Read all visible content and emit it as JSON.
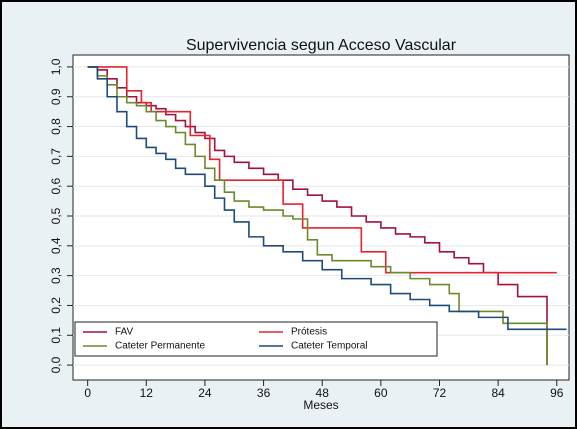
{
  "chart_data": {
    "type": "line",
    "step": "post",
    "title": "Supervivencia segun Acceso Vascular",
    "x_label": "Meses",
    "xlim": [
      -3,
      98.5
    ],
    "ylim": [
      -0.05,
      1.04
    ],
    "xticks": [
      0,
      12,
      24,
      36,
      48,
      60,
      72,
      84,
      96
    ],
    "yticks": [
      {
        "value": 0,
        "label": "0,0"
      },
      {
        "value": 0.1,
        "label": "0,1"
      },
      {
        "value": 0.2,
        "label": "0,2"
      },
      {
        "value": 0.3,
        "label": "0,3"
      },
      {
        "value": 0.4,
        "label": "0,4"
      },
      {
        "value": 0.5,
        "label": "0,5"
      },
      {
        "value": 0.6,
        "label": "0,6"
      },
      {
        "value": 0.7,
        "label": "0,7"
      },
      {
        "value": 0.8,
        "label": "0,8"
      },
      {
        "value": 0.9,
        "label": "0,9"
      },
      {
        "value": 1.0,
        "label": "1,0"
      }
    ],
    "grid": true,
    "legend": "lower left",
    "series": [
      {
        "name": "FAV",
        "color": "#a3123f",
        "x": [
          0,
          2,
          4,
          6,
          8,
          10,
          12,
          14,
          16,
          18,
          20,
          22,
          24,
          26,
          28,
          30,
          33,
          36,
          39,
          42,
          45,
          48,
          51,
          54,
          57,
          60,
          63,
          66,
          69,
          72,
          75,
          78,
          81,
          84,
          88,
          94
        ],
        "values": [
          1.0,
          0.99,
          0.96,
          0.93,
          0.9,
          0.88,
          0.87,
          0.86,
          0.84,
          0.82,
          0.8,
          0.78,
          0.76,
          0.72,
          0.7,
          0.68,
          0.66,
          0.64,
          0.62,
          0.59,
          0.57,
          0.55,
          0.53,
          0.5,
          0.48,
          0.46,
          0.44,
          0.43,
          0.41,
          0.38,
          0.36,
          0.34,
          0.31,
          0.27,
          0.23,
          0.0
        ]
      },
      {
        "name": "Prótesis",
        "color": "#e8222e",
        "x": [
          0,
          8,
          11,
          13,
          21,
          25,
          27,
          40,
          44,
          56,
          61,
          96
        ],
        "values": [
          1.0,
          0.92,
          0.88,
          0.85,
          0.77,
          0.69,
          0.62,
          0.54,
          0.46,
          0.38,
          0.31,
          0.31
        ]
      },
      {
        "name": "Cateter Permanente",
        "color": "#6b8a2a",
        "x": [
          0,
          2,
          4,
          6,
          8,
          10,
          12,
          14,
          16,
          18,
          20,
          22,
          24,
          26,
          28,
          30,
          33,
          36,
          40,
          42,
          45,
          47,
          50,
          58,
          62,
          66,
          70,
          74,
          76,
          85,
          94
        ],
        "values": [
          1.0,
          0.97,
          0.94,
          0.9,
          0.88,
          0.87,
          0.85,
          0.82,
          0.8,
          0.78,
          0.74,
          0.7,
          0.66,
          0.62,
          0.58,
          0.55,
          0.53,
          0.52,
          0.5,
          0.49,
          0.42,
          0.37,
          0.35,
          0.33,
          0.31,
          0.29,
          0.27,
          0.24,
          0.18,
          0.14,
          0.0
        ]
      },
      {
        "name": "Cateter Temporal",
        "color": "#1f4a7a",
        "x": [
          0,
          2,
          4,
          6,
          8,
          10,
          12,
          14,
          16,
          18,
          20,
          24,
          26,
          28,
          30,
          33,
          36,
          40,
          44,
          48,
          52,
          58,
          62,
          66,
          70,
          74,
          80,
          86,
          98
        ],
        "values": [
          1.0,
          0.96,
          0.9,
          0.85,
          0.8,
          0.76,
          0.73,
          0.71,
          0.69,
          0.66,
          0.64,
          0.6,
          0.56,
          0.52,
          0.48,
          0.43,
          0.4,
          0.38,
          0.35,
          0.32,
          0.29,
          0.27,
          0.24,
          0.22,
          0.2,
          0.18,
          0.16,
          0.12,
          0.12
        ]
      }
    ]
  }
}
